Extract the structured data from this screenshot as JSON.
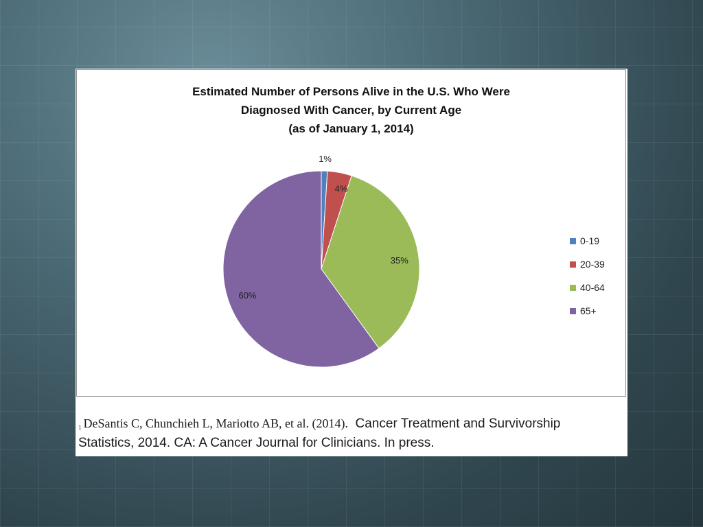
{
  "chart_data": {
    "type": "pie",
    "title_lines": [
      "Estimated Number of Persons Alive in the U.S. Who Were",
      "Diagnosed With Cancer, by Current Age",
      "(as of January 1, 2014)"
    ],
    "categories": [
      "0-19",
      "20-39",
      "40-64",
      "65+"
    ],
    "values": [
      1,
      4,
      35,
      60
    ],
    "data_labels": [
      "1%",
      "4%",
      "35%",
      "60%"
    ],
    "colors": [
      "#4f81bd",
      "#c0504d",
      "#9bbb59",
      "#8064a2"
    ],
    "legend_placement": "right"
  },
  "citation": {
    "marker": "1",
    "authors": "DeSantis C, Chunchieh L, Mariotto AB, et al. (2014).",
    "line1_rest": "Cancer Treatment and Survivorship",
    "line2": "Statistics, 2014. CA: A Cancer Journal for Clinicians. In press."
  }
}
